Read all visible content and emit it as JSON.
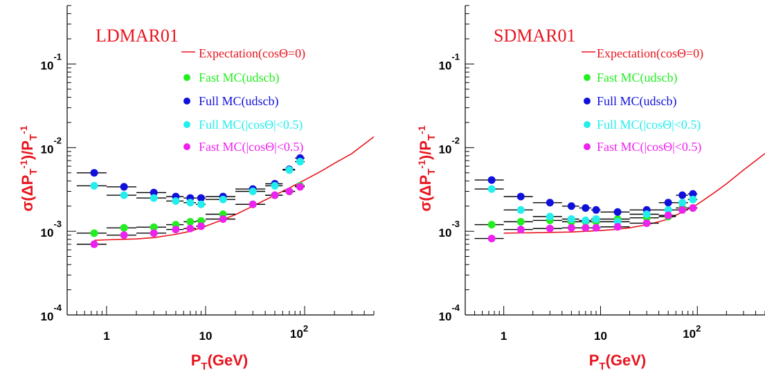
{
  "chart_data": [
    {
      "type": "scatter",
      "title": "LDMAR01",
      "ylabel": "σ(ΔP_T^-1)/P_T^-1",
      "xlabel": "P_T(GeV)",
      "xscale": "log",
      "yscale": "log",
      "xlim": [
        0.4,
        500
      ],
      "ylim": [
        0.0001,
        0.5
      ],
      "x_ticks": [
        1,
        10,
        100
      ],
      "y_ticks": [
        0.0001,
        0.001,
        0.01,
        0.1
      ],
      "legend_position": "top-right",
      "x": [
        0.75,
        1.5,
        3,
        5,
        7,
        9,
        15,
        30,
        50,
        70,
        90
      ],
      "x_err_lo": [
        0.25,
        0.5,
        1,
        1,
        1,
        1,
        5,
        10,
        10,
        10,
        10
      ],
      "x_err_hi": [
        0.25,
        0.5,
        1,
        1,
        1,
        1,
        5,
        10,
        10,
        10,
        10
      ],
      "expectation": {
        "name": "Expectation(cosΘ=0)",
        "color": "#e8141e",
        "x": [
          0.75,
          1,
          2,
          3,
          5,
          7,
          10,
          15,
          20,
          30,
          50,
          70,
          100,
          150,
          200,
          300,
          500
        ],
        "y": [
          0.00078,
          0.00079,
          0.00081,
          0.00084,
          0.00092,
          0.001,
          0.00115,
          0.00138,
          0.00158,
          0.002,
          0.0027,
          0.0033,
          0.0041,
          0.0053,
          0.0065,
          0.0085,
          0.0135
        ]
      },
      "series": [
        {
          "name": "Fast MC(udscb)",
          "color": "#22ee22",
          "values": [
            0.00095,
            0.0011,
            0.00112,
            0.0012,
            0.0013,
            0.00133,
            0.0016,
            0.0021,
            0.0027,
            0.003,
            0.0035
          ]
        },
        {
          "name": "Full MC(udscb)",
          "color": "#1010dd",
          "values": [
            0.005,
            0.0034,
            0.0029,
            0.0026,
            0.0025,
            0.0025,
            0.0026,
            0.0032,
            0.0037,
            0.0055,
            0.0075
          ]
        },
        {
          "name": "Full MC(|cosΘ|<0.5)",
          "color": "#22eeee",
          "values": [
            0.0035,
            0.0027,
            0.0025,
            0.0023,
            0.0022,
            0.0021,
            0.0024,
            0.003,
            0.0035,
            0.0054,
            0.0068
          ]
        },
        {
          "name": "Fast MC(|cosΘ|<0.5)",
          "color": "#ee22ee",
          "values": [
            0.0007,
            0.0009,
            0.00095,
            0.00105,
            0.00108,
            0.00115,
            0.0014,
            0.0021,
            0.0027,
            0.003,
            0.0034
          ]
        }
      ]
    },
    {
      "type": "scatter",
      "title": "SDMAR01",
      "ylabel": "σ(ΔP_T^-1)/P_T^-1",
      "xlabel": "P_T(GeV)",
      "xscale": "log",
      "yscale": "log",
      "xlim": [
        0.4,
        500
      ],
      "ylim": [
        0.0001,
        0.5
      ],
      "x_ticks": [
        1,
        10,
        100
      ],
      "y_ticks": [
        0.0001,
        0.001,
        0.01,
        0.1
      ],
      "legend_position": "top-right",
      "x": [
        0.75,
        1.5,
        3,
        5,
        7,
        9,
        15,
        30,
        50,
        70,
        90
      ],
      "x_err_lo": [
        0.25,
        0.5,
        1,
        1,
        1,
        1,
        5,
        10,
        10,
        10,
        10
      ],
      "x_err_hi": [
        0.25,
        0.5,
        1,
        1,
        1,
        1,
        5,
        10,
        10,
        10,
        10
      ],
      "expectation": {
        "name": "Expectation(cosΘ=0)",
        "color": "#e8141e",
        "x": [
          1,
          2,
          3,
          5,
          7,
          10,
          15,
          20,
          30,
          40,
          50,
          70,
          100,
          150,
          200,
          300,
          500
        ],
        "y": [
          0.00095,
          0.00096,
          0.00097,
          0.00098,
          0.001,
          0.00102,
          0.00106,
          0.0011,
          0.0012,
          0.0013,
          0.0014,
          0.0017,
          0.0021,
          0.0029,
          0.0037,
          0.0054,
          0.0085
        ]
      },
      "series": [
        {
          "name": "Fast MC(udscb)",
          "color": "#22ee22",
          "values": [
            0.0012,
            0.0013,
            0.00135,
            0.0013,
            0.0013,
            0.0013,
            0.0014,
            0.00145,
            0.0015,
            0.0019,
            0.0019
          ]
        },
        {
          "name": "Full MC(udscb)",
          "color": "#1010dd",
          "values": [
            0.0041,
            0.0026,
            0.0022,
            0.002,
            0.0019,
            0.0018,
            0.0017,
            0.0018,
            0.0022,
            0.0027,
            0.0028
          ]
        },
        {
          "name": "Full MC(|cosΘ|<0.5)",
          "color": "#22eeee",
          "values": [
            0.0032,
            0.0018,
            0.0015,
            0.0014,
            0.00135,
            0.0014,
            0.0013,
            0.0016,
            0.0018,
            0.0022,
            0.0024
          ]
        },
        {
          "name": "Fast MC(|cosΘ|<0.5)",
          "color": "#ee22ee",
          "values": [
            0.00082,
            0.00105,
            0.00108,
            0.0011,
            0.0011,
            0.0011,
            0.00113,
            0.00125,
            0.00155,
            0.0018,
            0.0019
          ]
        }
      ]
    }
  ]
}
